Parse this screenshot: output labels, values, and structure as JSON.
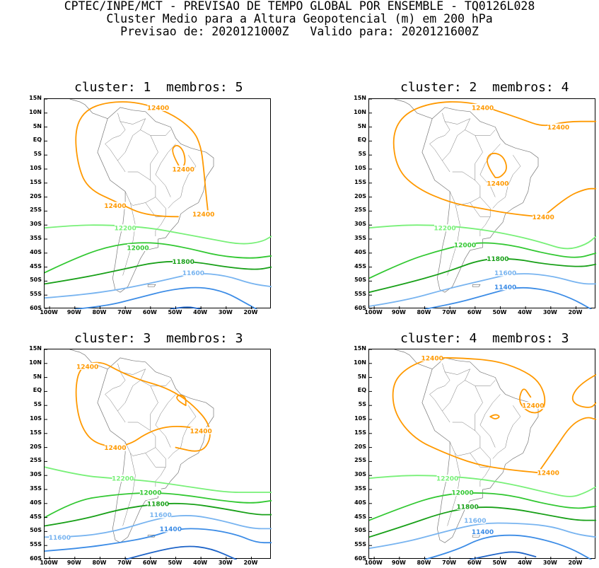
{
  "header": {
    "line1": "CPTEC/INPE/MCT - PREVISAO DE TEMPO GLOBAL POR ENSEMBLE - TQ0126L028",
    "line2": "Cluster Medio para a Altura Geopotencial (m) em 200 hPa",
    "line3": "Previsao de: 2020121000Z   Valido para: 2020121600Z"
  },
  "axes": {
    "lat_labels": [
      "15N",
      "10N",
      "5N",
      "EQ",
      "5S",
      "10S",
      "15S",
      "20S",
      "25S",
      "30S",
      "35S",
      "40S",
      "45S",
      "50S",
      "55S",
      "60S"
    ],
    "lon_labels": [
      "100W",
      "90W",
      "80W",
      "70W",
      "60W",
      "50W",
      "40W",
      "30W",
      "20W"
    ]
  },
  "colors": {
    "c12400": "#ff9900",
    "c12200": "#78f078",
    "c12000": "#32c832",
    "c11800": "#18a018",
    "c11600": "#78b4f0",
    "c11400": "#3c8ce6",
    "c11200": "#1e64c8",
    "coast": "#777777"
  },
  "panels": [
    {
      "title": "cluster: 1  membros: 5",
      "labels": [
        {
          "text": "12400",
          "lon": -57,
          "lat": 12,
          "c": "c12400"
        },
        {
          "text": "12400",
          "lon": -47,
          "lat": -10,
          "c": "c12400"
        },
        {
          "text": "12400",
          "lon": -74,
          "lat": -23,
          "c": "c12400"
        },
        {
          "text": "12400",
          "lon": -39,
          "lat": -26,
          "c": "c12400"
        },
        {
          "text": "12200",
          "lon": -70,
          "lat": -31,
          "c": "c12200"
        },
        {
          "text": "12000",
          "lon": -65,
          "lat": -38,
          "c": "c12000"
        },
        {
          "text": "11800",
          "lon": -47,
          "lat": -43,
          "c": "c11800"
        },
        {
          "text": "11600",
          "lon": -43,
          "lat": -47,
          "c": "c11600"
        }
      ]
    },
    {
      "title": "cluster: 2  membros: 4",
      "labels": [
        {
          "text": "12400",
          "lon": -57,
          "lat": 12,
          "c": "c12400"
        },
        {
          "text": "12400",
          "lon": -27,
          "lat": 5,
          "c": "c12400"
        },
        {
          "text": "12400",
          "lon": -51,
          "lat": -15,
          "c": "c12400"
        },
        {
          "text": "12400",
          "lon": -33,
          "lat": -27,
          "c": "c12400"
        },
        {
          "text": "12200",
          "lon": -72,
          "lat": -31,
          "c": "c12200"
        },
        {
          "text": "12000",
          "lon": -64,
          "lat": -37,
          "c": "c12000"
        },
        {
          "text": "11800",
          "lon": -51,
          "lat": -42,
          "c": "c11800"
        },
        {
          "text": "11600",
          "lon": -48,
          "lat": -47,
          "c": "c11600"
        },
        {
          "text": "11400",
          "lon": -48,
          "lat": -52,
          "c": "c11400"
        }
      ]
    },
    {
      "title": "cluster: 3  membros: 3",
      "labels": [
        {
          "text": "12400",
          "lon": -85,
          "lat": 9,
          "c": "c12400"
        },
        {
          "text": "12400",
          "lon": -40,
          "lat": -14,
          "c": "c12400"
        },
        {
          "text": "12400",
          "lon": -74,
          "lat": -20,
          "c": "c12400"
        },
        {
          "text": "12200",
          "lon": -71,
          "lat": -31,
          "c": "c12200"
        },
        {
          "text": "12000",
          "lon": -60,
          "lat": -36,
          "c": "c12000"
        },
        {
          "text": "11800",
          "lon": -57,
          "lat": -40,
          "c": "c11800"
        },
        {
          "text": "11600",
          "lon": -56,
          "lat": -44,
          "c": "c11600"
        },
        {
          "text": "11400",
          "lon": -52,
          "lat": -49,
          "c": "c11400"
        },
        {
          "text": "11600",
          "lon": -96,
          "lat": -52,
          "c": "c11600"
        }
      ]
    },
    {
      "title": "cluster: 4  membros: 3",
      "labels": [
        {
          "text": "12400",
          "lon": -77,
          "lat": 12,
          "c": "c12400"
        },
        {
          "text": "12400",
          "lon": -37,
          "lat": -5,
          "c": "c12400"
        },
        {
          "text": "12400",
          "lon": -31,
          "lat": -29,
          "c": "c12400"
        },
        {
          "text": "12200",
          "lon": -71,
          "lat": -31,
          "c": "c12200"
        },
        {
          "text": "12000",
          "lon": -65,
          "lat": -36,
          "c": "c12000"
        },
        {
          "text": "11800",
          "lon": -63,
          "lat": -41,
          "c": "c11800"
        },
        {
          "text": "11600",
          "lon": -60,
          "lat": -46,
          "c": "c11600"
        },
        {
          "text": "11400",
          "lon": -57,
          "lat": -50,
          "c": "c11400"
        }
      ]
    }
  ]
}
